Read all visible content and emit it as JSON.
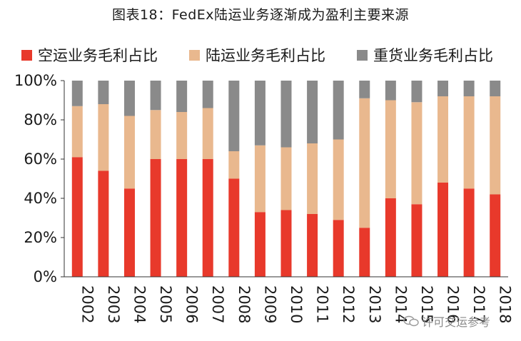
{
  "title": "图表18：FedEx陆运业务逐渐成为盈利主要来源",
  "legend": [
    {
      "label": "空运业务毛利占比",
      "color": "#e8392b"
    },
    {
      "label": "陆运业务毛利占比",
      "color": "#e9b88e"
    },
    {
      "label": "重货业务毛利占比",
      "color": "#8a8a8a"
    }
  ],
  "watermark": "许可交运参考",
  "chart_data": {
    "type": "bar",
    "stacked": true,
    "categories": [
      "2002",
      "2003",
      "2004",
      "2005",
      "2006",
      "2007",
      "2008",
      "2009",
      "2010",
      "2011",
      "2012",
      "2013",
      "2014",
      "2015",
      "2016",
      "2017",
      "2018"
    ],
    "series": [
      {
        "name": "空运业务毛利占比",
        "color": "#e8392b",
        "values": [
          61,
          54,
          45,
          60,
          60,
          60,
          50,
          33,
          34,
          32,
          29,
          25,
          40,
          37,
          48,
          45,
          42
        ]
      },
      {
        "name": "陆运业务毛利占比",
        "color": "#e9b88e",
        "values": [
          26,
          34,
          37,
          25,
          24,
          26,
          14,
          34,
          32,
          36,
          41,
          66,
          50,
          52,
          44,
          47,
          50
        ]
      },
      {
        "name": "重货业务毛利占比",
        "color": "#8a8a8a",
        "values": [
          13,
          12,
          18,
          15,
          16,
          14,
          36,
          33,
          34,
          32,
          30,
          9,
          10,
          11,
          8,
          8,
          8
        ]
      }
    ],
    "yticks": [
      "0%",
      "20%",
      "40%",
      "60%",
      "80%",
      "100%"
    ],
    "ylim": [
      0,
      100
    ],
    "grid": false,
    "legend_position": "top"
  }
}
